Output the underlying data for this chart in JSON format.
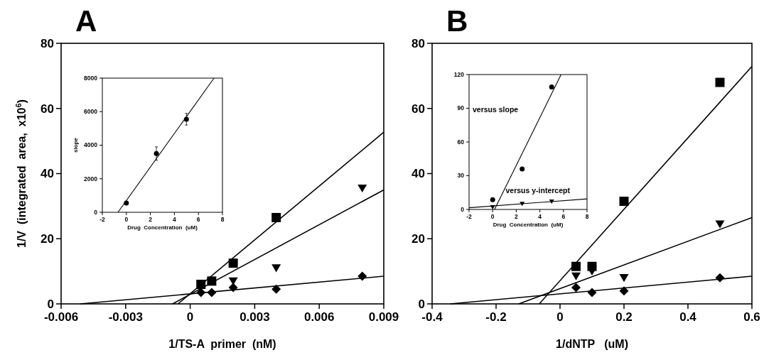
{
  "chart_data": [
    {
      "type": "scatter",
      "title": "A",
      "xlabel": "1/TS-A  primer  (nM)",
      "ylabel": "1/V  (integrated  area,  x10$^{6}$)",
      "xlim": [
        -0.006,
        0.009
      ],
      "xticks": [
        -0.006,
        -0.003,
        0,
        0.003,
        0.006,
        0.009
      ],
      "ylim": [
        0,
        80
      ],
      "yticks": [
        0,
        20,
        40,
        60,
        80
      ],
      "series": [
        {
          "type": "line",
          "color": "#000000",
          "x": [
            -0.00057,
            0.009
          ],
          "values": [
            0,
            52.7
          ]
        },
        {
          "type": "line",
          "color": "#000000",
          "x": [
            -0.00082,
            0.009
          ],
          "values": [
            0,
            35
          ]
        },
        {
          "type": "line",
          "color": "#000000",
          "x": [
            -0.0051,
            0.009
          ],
          "values": [
            0,
            8.5
          ]
        },
        {
          "type": "scatter",
          "marker": "square",
          "color": "#000000",
          "x": [
            0.0005,
            0.001,
            0.002,
            0.004
          ],
          "values": [
            6,
            7,
            12.5,
            26.5
          ]
        },
        {
          "type": "scatter",
          "marker": "triangle",
          "color": "#000000",
          "x": [
            0.002,
            0.004,
            0.008
          ],
          "values": [
            7,
            11,
            35.5
          ]
        },
        {
          "type": "scatter",
          "marker": "diamond",
          "color": "#000000",
          "x": [
            0.0005,
            0.001,
            0.002,
            0.004,
            0.008
          ],
          "values": [
            3.5,
            3.5,
            5,
            4.5,
            8.5
          ]
        }
      ]
    },
    {
      "type": "scatter",
      "xlabel": "Drug  Concentration  (uM)",
      "ylabel": "slope",
      "xlim": [
        -2,
        8
      ],
      "xticks": [
        -2,
        0,
        2,
        4,
        6,
        8
      ],
      "ylim": [
        0,
        8000
      ],
      "yticks": [
        0,
        2000,
        4000,
        6000,
        8000
      ],
      "series": [
        {
          "type": "line",
          "color": "#000000",
          "x": [
            -0.7,
            7.3
          ],
          "values": [
            0,
            8000
          ]
        },
        {
          "type": "scatter",
          "marker": "circle",
          "color": "#000000",
          "x": [
            0,
            2.5,
            5
          ],
          "values": [
            550,
            3500,
            5550
          ],
          "errors": [
            null,
            400,
            350
          ]
        }
      ]
    },
    {
      "type": "scatter",
      "title": "B",
      "xlabel": "1/dNTP   (uM)",
      "xlim": [
        -0.4,
        0.6
      ],
      "xticks": [
        -0.4,
        -0.2,
        0,
        0.2,
        0.4,
        0.6
      ],
      "ylim": [
        0,
        80
      ],
      "yticks": [
        0,
        20,
        40,
        60,
        80
      ],
      "series": [
        {
          "type": "line",
          "color": "#000000",
          "x": [
            -0.065,
            0.6
          ],
          "values": [
            0,
            72.9
          ]
        },
        {
          "type": "line",
          "color": "#000000",
          "x": [
            -0.129,
            0.6
          ],
          "values": [
            0,
            26.5
          ]
        },
        {
          "type": "line",
          "color": "#000000",
          "x": [
            -0.343,
            0.6
          ],
          "values": [
            0,
            8.5
          ]
        },
        {
          "type": "scatter",
          "marker": "square",
          "color": "#000000",
          "x": [
            0.05,
            0.1,
            0.2,
            0.5
          ],
          "values": [
            11.5,
            11.5,
            31.5,
            68
          ]
        },
        {
          "type": "scatter",
          "marker": "triangle",
          "color": "#000000",
          "x": [
            0.05,
            0.1,
            0.2,
            0.5
          ],
          "values": [
            8.5,
            10,
            8,
            24.5
          ]
        },
        {
          "type": "scatter",
          "marker": "diamond",
          "color": "#000000",
          "x": [
            0.05,
            0.1,
            0.2,
            0.5
          ],
          "values": [
            5,
            3.5,
            4,
            8
          ]
        }
      ]
    },
    {
      "type": "scatter",
      "xlabel": "Drug  Concentration  (uM)",
      "xlim": [
        -2,
        8
      ],
      "xticks": [
        -2,
        0,
        2,
        4,
        6,
        8
      ],
      "ylim": [
        0,
        120
      ],
      "yticks": [
        0,
        30,
        60,
        90,
        120
      ],
      "annotations": [
        "versus slope",
        "versus y-intercept"
      ],
      "series": [
        {
          "type": "line",
          "color": "#000000",
          "x": [
            0.16,
            5.8
          ],
          "values": [
            0,
            120
          ]
        },
        {
          "type": "line",
          "color": "#000000",
          "x": [
            -2,
            8
          ],
          "values": [
            1.5,
            9.4
          ]
        },
        {
          "type": "scatter",
          "marker": "circle",
          "color": "#000000",
          "x": [
            0,
            2.5,
            5
          ],
          "values": [
            8.7,
            36,
            109
          ]
        },
        {
          "type": "scatter",
          "marker": "triangle",
          "color": "#000000",
          "x": [
            0,
            2.5,
            5
          ],
          "values": [
            2,
            5,
            7
          ]
        }
      ]
    }
  ]
}
